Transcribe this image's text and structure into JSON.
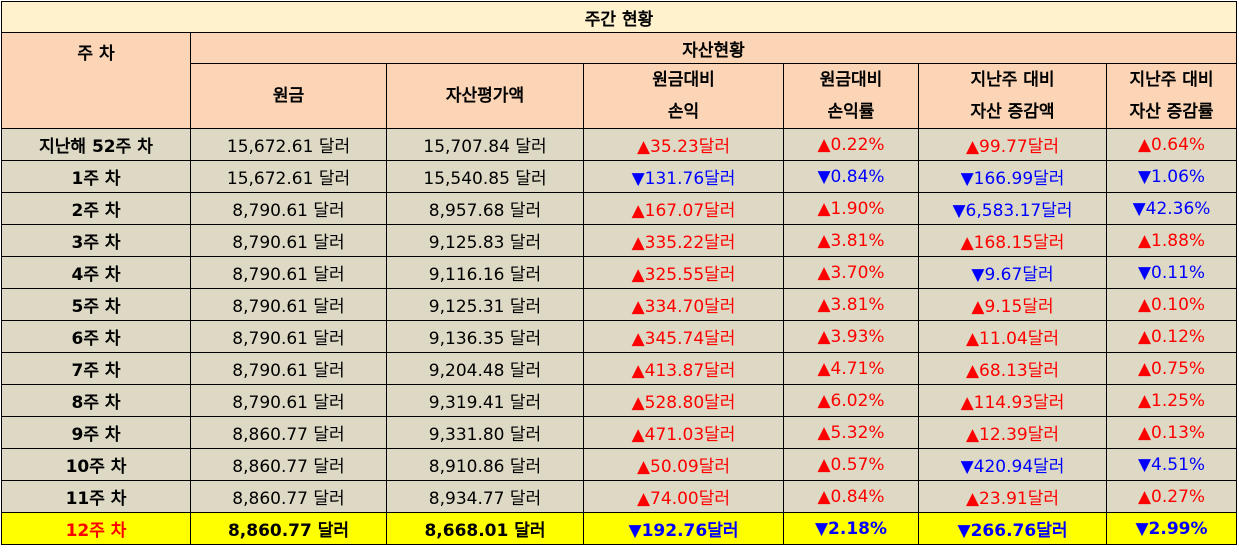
{
  "title": "주간 현황",
  "headers": {
    "week": "주 차",
    "group": "자산현황",
    "principal": "원금",
    "asset_value": "자산평가액",
    "pl_vs_principal": [
      "원금대비",
      "손익"
    ],
    "pl_rate_vs_principal": [
      "원금대비",
      "손익률"
    ],
    "asset_change_vs_lastweek": [
      "지난주 대비",
      "자산 증감액"
    ],
    "asset_change_rate_vs_lastweek": [
      "지난주 대비",
      "자산 증감률"
    ]
  },
  "rows": [
    {
      "week": "지난해 52주 차",
      "principal": "15,672.61 달러",
      "asset": "15,707.84 달러",
      "pl": "▲35.23달러",
      "pl_dir": "up",
      "rate": "▲0.22%",
      "rate_dir": "up",
      "chg": "▲99.77달러",
      "chg_dir": "up",
      "chg_rate": "▲0.64%",
      "chg_rate_dir": "up"
    },
    {
      "week": "1주 차",
      "principal": "15,672.61 달러",
      "asset": "15,540.85 달러",
      "pl": "▼131.76달러",
      "pl_dir": "down",
      "rate": "▼0.84%",
      "rate_dir": "down",
      "chg": "▼166.99달러",
      "chg_dir": "down",
      "chg_rate": "▼1.06%",
      "chg_rate_dir": "down"
    },
    {
      "week": "2주 차",
      "principal": "8,790.61 달러",
      "asset": "8,957.68 달러",
      "pl": "▲167.07달러",
      "pl_dir": "up",
      "rate": "▲1.90%",
      "rate_dir": "up",
      "chg": "▼6,583.17달러",
      "chg_dir": "down",
      "chg_rate": "▼42.36%",
      "chg_rate_dir": "down"
    },
    {
      "week": "3주 차",
      "principal": "8,790.61 달러",
      "asset": "9,125.83 달러",
      "pl": "▲335.22달러",
      "pl_dir": "up",
      "rate": "▲3.81%",
      "rate_dir": "up",
      "chg": "▲168.15달러",
      "chg_dir": "up",
      "chg_rate": "▲1.88%",
      "chg_rate_dir": "up"
    },
    {
      "week": "4주 차",
      "principal": "8,790.61 달러",
      "asset": "9,116.16 달러",
      "pl": "▲325.55달러",
      "pl_dir": "up",
      "rate": "▲3.70%",
      "rate_dir": "up",
      "chg": "▼9.67달러",
      "chg_dir": "down",
      "chg_rate": "▼0.11%",
      "chg_rate_dir": "down"
    },
    {
      "week": "5주 차",
      "principal": "8,790.61 달러",
      "asset": "9,125.31 달러",
      "pl": "▲334.70달러",
      "pl_dir": "up",
      "rate": "▲3.81%",
      "rate_dir": "up",
      "chg": "▲9.15달러",
      "chg_dir": "up",
      "chg_rate": "▲0.10%",
      "chg_rate_dir": "up"
    },
    {
      "week": "6주 차",
      "principal": "8,790.61 달러",
      "asset": "9,136.35 달러",
      "pl": "▲345.74달러",
      "pl_dir": "up",
      "rate": "▲3.93%",
      "rate_dir": "up",
      "chg": "▲11.04달러",
      "chg_dir": "up",
      "chg_rate": "▲0.12%",
      "chg_rate_dir": "up"
    },
    {
      "week": "7주 차",
      "principal": "8,790.61 달러",
      "asset": "9,204.48 달러",
      "pl": "▲413.87달러",
      "pl_dir": "up",
      "rate": "▲4.71%",
      "rate_dir": "up",
      "chg": "▲68.13달러",
      "chg_dir": "up",
      "chg_rate": "▲0.75%",
      "chg_rate_dir": "up"
    },
    {
      "week": "8주 차",
      "principal": "8,790.61 달러",
      "asset": "9,319.41 달러",
      "pl": "▲528.80달러",
      "pl_dir": "up",
      "rate": "▲6.02%",
      "rate_dir": "up",
      "chg": "▲114.93달러",
      "chg_dir": "up",
      "chg_rate": "▲1.25%",
      "chg_rate_dir": "up"
    },
    {
      "week": "9주 차",
      "principal": "8,860.77 달러",
      "asset": "9,331.80 달러",
      "pl": "▲471.03달러",
      "pl_dir": "up",
      "rate": "▲5.32%",
      "rate_dir": "up",
      "chg": "▲12.39달러",
      "chg_dir": "up",
      "chg_rate": "▲0.13%",
      "chg_rate_dir": "up"
    },
    {
      "week": "10주 차",
      "principal": "8,860.77 달러",
      "asset": "8,910.86 달러",
      "pl": "▲50.09달러",
      "pl_dir": "up",
      "rate": "▲0.57%",
      "rate_dir": "up",
      "chg": "▼420.94달러",
      "chg_dir": "down",
      "chg_rate": "▼4.51%",
      "chg_rate_dir": "down"
    },
    {
      "week": "11주 차",
      "principal": "8,860.77 달러",
      "asset": "8,934.77 달러",
      "pl": "▲74.00달러",
      "pl_dir": "up",
      "rate": "▲0.84%",
      "rate_dir": "up",
      "chg": "▲23.91달러",
      "chg_dir": "up",
      "chg_rate": "▲0.27%",
      "chg_rate_dir": "up"
    }
  ],
  "last_row": {
    "week": "12주 차",
    "principal": "8,860.77 달러",
    "asset": "8,668.01 달러",
    "pl": "▼192.76달러",
    "pl_dir": "down",
    "rate": "▼2.18%",
    "rate_dir": "down",
    "chg": "▼266.76달러",
    "chg_dir": "down",
    "chg_rate": "▼2.99%",
    "chg_rate_dir": "down"
  },
  "colors": {
    "title_bg": "#FFF2CC",
    "header_bg": "#FBD5B5",
    "body_bg": "#DDD9C4",
    "highlight_bg": "#FFFF00",
    "up": "#FF0000",
    "down": "#0000FF"
  }
}
